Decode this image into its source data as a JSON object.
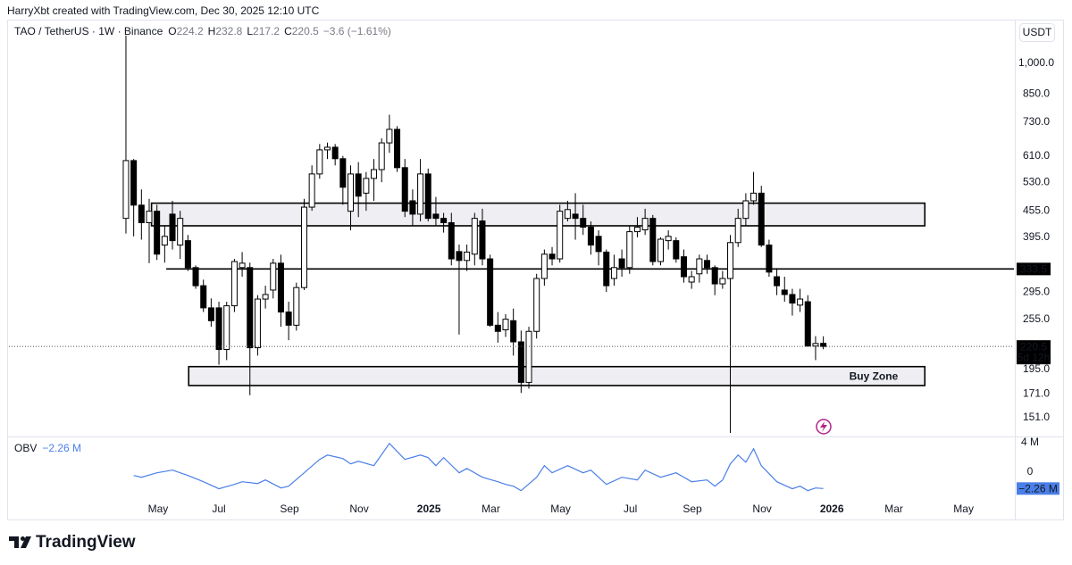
{
  "header": {
    "attribution": "HarryXbt created with TradingView.com, Dec 30, 2025 12:10 UTC"
  },
  "chart_data": [
    {
      "type": "candlestick",
      "title": "TAO / TetherUS · 1W · Binance",
      "ohlc_labels": [
        "O",
        "H",
        "L",
        "C"
      ],
      "change": "−3.6 (−1.61%)",
      "currency": "USDT",
      "log_scale": true,
      "up_color": "#ffffff",
      "down_color": "#000000",
      "edge_color": "#000000",
      "open": [
        437,
        595,
        469,
        427,
        454,
        379,
        447,
        379,
        388,
        336,
        305,
        271,
        271,
        217,
        274,
        336,
        336,
        219,
        284,
        298,
        344,
        265,
        247,
        302,
        464,
        554,
        630,
        639,
        601,
        454,
        554,
        500,
        541,
        567,
        654,
        703,
        573,
        480,
        447,
        554,
        447,
        437,
        427,
        366,
        349,
        361,
        431,
        352,
        247,
        241,
        253,
        226,
        182,
        239,
        317,
        361,
        352,
        437,
        447,
        437,
        417,
        397,
        365,
        317,
        352,
        336,
        407,
        411,
        437,
        347,
        388,
        388,
        356,
        311,
        325,
        349,
        336,
        308,
        317,
        384,
        437,
        480,
        500,
        379,
        320,
        298,
        291,
        275,
        280,
        221,
        224.2
      ],
      "high": [
        1160,
        600,
        510,
        485,
        470,
        420,
        480,
        455,
        400,
        340,
        315,
        285,
        280,
        280,
        352,
        365,
        345,
        290,
        305,
        352,
        360,
        280,
        310,
        485,
        580,
        650,
        655,
        650,
        610,
        580,
        590,
        560,
        600,
        670,
        760,
        715,
        600,
        510,
        600,
        570,
        490,
        450,
        450,
        380,
        380,
        450,
        460,
        360,
        265,
        262,
        270,
        240,
        245,
        325,
        370,
        375,
        470,
        480,
        500,
        470,
        430,
        410,
        370,
        360,
        370,
        420,
        440,
        460,
        445,
        395,
        410,
        395,
        370,
        330,
        360,
        360,
        340,
        330,
        400,
        460,
        500,
        560,
        520,
        390,
        335,
        320,
        300,
        300,
        290,
        233,
        232.8
      ],
      "low": [
        403,
        397,
        390,
        344,
        350,
        345,
        370,
        352,
        330,
        300,
        265,
        245,
        200,
        205,
        265,
        320,
        170,
        210,
        270,
        285,
        245,
        228,
        240,
        298,
        455,
        540,
        600,
        580,
        470,
        410,
        440,
        455,
        480,
        530,
        620,
        560,
        440,
        420,
        430,
        430,
        420,
        405,
        340,
        235,
        330,
        340,
        340,
        245,
        225,
        232,
        210,
        172,
        176,
        230,
        305,
        340,
        345,
        430,
        390,
        400,
        360,
        340,
        295,
        305,
        320,
        325,
        395,
        400,
        340,
        340,
        370,
        345,
        310,
        300,
        310,
        325,
        290,
        300,
        139,
        375,
        420,
        470,
        375,
        320,
        290,
        280,
        260,
        265,
        220,
        205,
        217.2
      ],
      "close": [
        595,
        469,
        427,
        454,
        361,
        397,
        388,
        437,
        336,
        305,
        271,
        253,
        217,
        274,
        347,
        344,
        219,
        284,
        291,
        344,
        265,
        247,
        302,
        464,
        554,
        630,
        639,
        601,
        516,
        554,
        492,
        541,
        567,
        654,
        703,
        573,
        454,
        447,
        554,
        437,
        437,
        427,
        352,
        349,
        365,
        437,
        352,
        247,
        239,
        255,
        226,
        182,
        239,
        317,
        361,
        352,
        454,
        458,
        437,
        417,
        379,
        366,
        305,
        336,
        336,
        407,
        417,
        437,
        347,
        391,
        397,
        352,
        320,
        320,
        352,
        336,
        308,
        317,
        384,
        437,
        480,
        500,
        379,
        328,
        305,
        291,
        278,
        284,
        221,
        224,
        220.5
      ],
      "xlim": [
        -15.1,
        114.6
      ],
      "ylim": [
        137,
        1263
      ],
      "yticks": [
        {
          "value": 1000,
          "label": "1,000.0"
        },
        {
          "value": 850,
          "label": "850.0"
        },
        {
          "value": 730,
          "label": "730.0"
        },
        {
          "value": 610,
          "label": "610.0"
        },
        {
          "value": 530,
          "label": "530.0"
        },
        {
          "value": 455,
          "label": "455.0"
        },
        {
          "value": 395,
          "label": "395.0"
        },
        {
          "value": 295,
          "label": "295.0"
        },
        {
          "value": 255,
          "label": "255.0"
        },
        {
          "value": 195,
          "label": "195.0"
        },
        {
          "value": 171,
          "label": "171.0"
        },
        {
          "value": 151,
          "label": "151.0"
        }
      ],
      "xticks": [
        {
          "value": 4.15,
          "label": "May"
        },
        {
          "value": 12,
          "label": "Jul"
        },
        {
          "value": 21.1,
          "label": "Sep"
        },
        {
          "value": 30.1,
          "label": "Nov"
        },
        {
          "value": 39.1,
          "label": "2025"
        },
        {
          "value": 47.1,
          "label": "Mar"
        },
        {
          "value": 56.1,
          "label": "May"
        },
        {
          "value": 65.1,
          "label": "Jul"
        },
        {
          "value": 73.1,
          "label": "Sep"
        },
        {
          "value": 82.1,
          "label": "Nov"
        },
        {
          "value": 91.1,
          "label": "2026"
        },
        {
          "value": 99.1,
          "label": "Mar"
        },
        {
          "value": 108.1,
          "label": "May"
        }
      ],
      "zones": [
        {
          "low": 420,
          "high": 474,
          "from": 3.3,
          "to": 103.1
        },
        {
          "low": 179,
          "high": 198,
          "from": 8.1,
          "to": 103.1,
          "label": "Buy Zone"
        }
      ],
      "hlines": [
        {
          "value": 333.5,
          "from": 5.2
        }
      ],
      "countdown": "5d 12h"
    },
    {
      "type": "line",
      "title": "OBV",
      "color": "#4a7fe8",
      "legend_value": "−2.26 M",
      "x": [
        1,
        2,
        4,
        6,
        8,
        10,
        12,
        14,
        15,
        17,
        18,
        20,
        21,
        23,
        25,
        26,
        28,
        29,
        30,
        32,
        34,
        36,
        38,
        39,
        40,
        41,
        43,
        44,
        46,
        48,
        49,
        50,
        51,
        53,
        54,
        55,
        57,
        59,
        60,
        62,
        64,
        66,
        67,
        69,
        71,
        73,
        75,
        76,
        77,
        78,
        79,
        80,
        81,
        82,
        84,
        86,
        87,
        88,
        89,
        90
      ],
      "values": [
        -0.48,
        -0.73,
        -0.12,
        0.24,
        -0.48,
        -1.33,
        -2.3,
        -1.7,
        -1.33,
        -1.58,
        -1.09,
        -2.18,
        -1.94,
        -0.12,
        1.7,
        2.3,
        1.82,
        1.09,
        1.45,
        0.85,
        3.88,
        1.7,
        2.3,
        1.94,
        0.85,
        1.94,
        -0.12,
        0.48,
        -0.73,
        -1.33,
        -1.7,
        -1.94,
        -2.55,
        -0.73,
        0.85,
        -0.12,
        0.85,
        -0.12,
        0.24,
        -1.7,
        -0.73,
        -1.09,
        0.24,
        -0.73,
        -0.12,
        -1.33,
        -1.09,
        -1.94,
        -1.09,
        1.09,
        2.3,
        1.33,
        3.15,
        0.85,
        -1.33,
        -2.3,
        -1.94,
        -2.55,
        -2.18,
        -2.26
      ],
      "xlim": [
        -15.1,
        114.6
      ],
      "ylim": [
        -3.8,
        4.7
      ],
      "yticks": [
        {
          "value": 4,
          "label": "4 M"
        },
        0
      ]
    }
  ],
  "footer": {
    "brand": "TradingView"
  }
}
